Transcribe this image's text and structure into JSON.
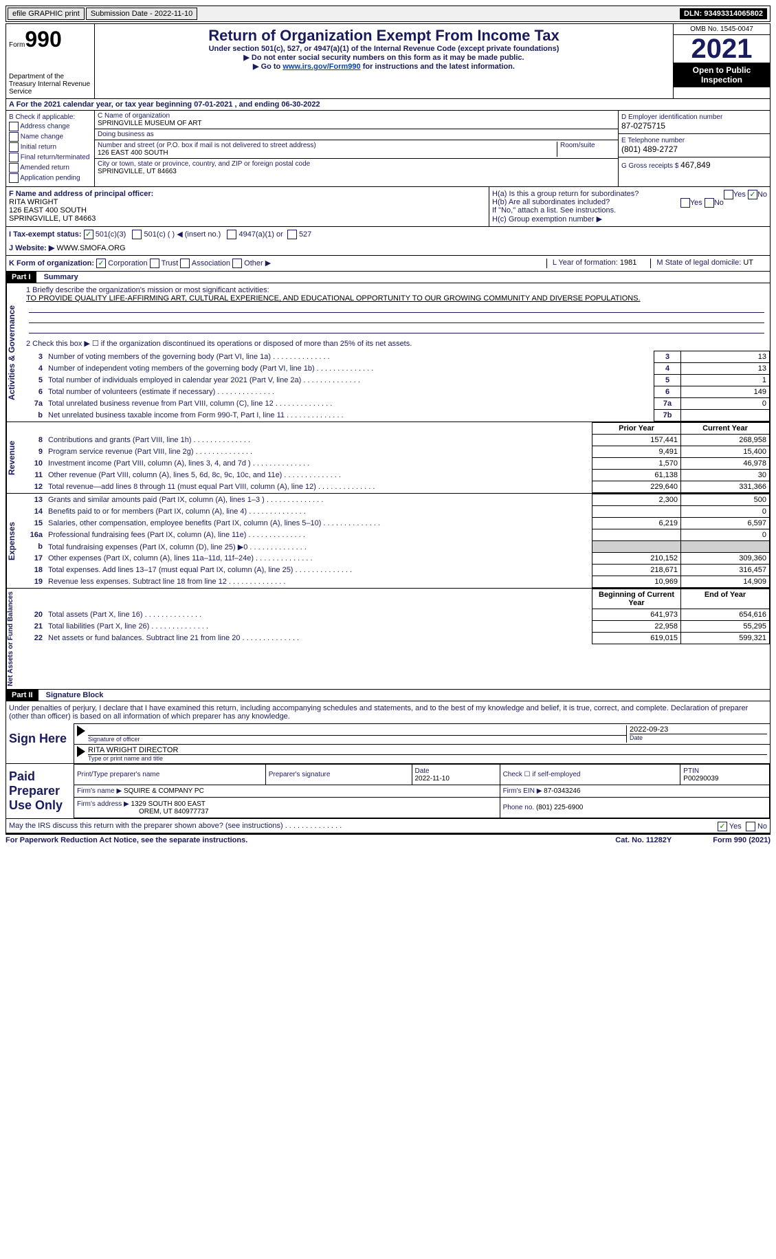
{
  "topbar": {
    "efile": "efile GRAPHIC print",
    "submission": "Submission Date - 2022-11-10",
    "dln": "DLN: 93493314065802"
  },
  "header": {
    "form_word": "Form",
    "form_num": "990",
    "dept": "Department of the Treasury Internal Revenue Service",
    "title": "Return of Organization Exempt From Income Tax",
    "sub1": "Under section 501(c), 527, or 4947(a)(1) of the Internal Revenue Code (except private foundations)",
    "sub2": "▶ Do not enter social security numbers on this form as it may be made public.",
    "sub3_pre": "▶ Go to ",
    "sub3_link": "www.irs.gov/Form990",
    "sub3_post": " for instructions and the latest information.",
    "omb": "OMB No. 1545-0047",
    "year": "2021",
    "inspection": "Open to Public Inspection"
  },
  "a": {
    "text": "A For the 2021 calendar year, or tax year beginning 07-01-2021   , and ending 06-30-2022"
  },
  "b": {
    "label": "B Check if applicable:",
    "items": [
      "Address change",
      "Name change",
      "Initial return",
      "Final return/terminated",
      "Amended return",
      "Application pending"
    ]
  },
  "c": {
    "name_lbl": "C Name of organization",
    "name": "SPRINGVILLE MUSEUM OF ART",
    "dba_lbl": "Doing business as",
    "dba": "",
    "addr_lbl": "Number and street (or P.O. box if mail is not delivered to street address)",
    "room_lbl": "Room/suite",
    "addr": "126 EAST 400 SOUTH",
    "city_lbl": "City or town, state or province, country, and ZIP or foreign postal code",
    "city": "SPRINGVILLE, UT  84663"
  },
  "d": {
    "ein_lbl": "D Employer identification number",
    "ein": "87-0275715",
    "tel_lbl": "E Telephone number",
    "tel": "(801) 489-2727",
    "gross_lbl": "G Gross receipts $",
    "gross": "467,849"
  },
  "f": {
    "lbl": "F Name and address of principal officer:",
    "name": "RITA WRIGHT",
    "addr1": "126 EAST 400 SOUTH",
    "addr2": "SPRINGVILLE, UT  84663"
  },
  "h": {
    "a_lbl": "H(a)  Is this a group return for subordinates?",
    "a_yes": "Yes",
    "a_no": "No",
    "b_lbl": "H(b)  Are all subordinates included?",
    "b_yes": "Yes",
    "b_no": "No",
    "b_note": "If \"No,\" attach a list. See instructions.",
    "c_lbl": "H(c)  Group exemption number ▶"
  },
  "i": {
    "lbl": "I  Tax-exempt status:",
    "opt1": "501(c)(3)",
    "opt2": "501(c) (  ) ◀ (insert no.)",
    "opt3": "4947(a)(1) or",
    "opt4": "527"
  },
  "j": {
    "lbl": "J  Website: ▶",
    "val": "WWW.SMOFA.ORG"
  },
  "k": {
    "lbl": "K Form of organization:",
    "opts": [
      "Corporation",
      "Trust",
      "Association",
      "Other ▶"
    ],
    "l_lbl": "L Year of formation:",
    "l_val": "1981",
    "m_lbl": "M State of legal domicile:",
    "m_val": "UT"
  },
  "part1": {
    "header": "Part I",
    "title": "Summary",
    "mission_lbl": "1  Briefly describe the organization's mission or most significant activities:",
    "mission": "TO PROVIDE QUALITY LIFE-AFFIRMING ART, CULTURAL EXPERIENCE, AND EDUCATIONAL OPPORTUNITY TO OUR GROWING COMMUNITY AND DIVERSE POPULATIONS.",
    "line2": "2   Check this box ▶ ☐  if the organization discontinued its operations or disposed of more than 25% of its net assets.",
    "side_ag": "Activities & Governance",
    "side_rev": "Revenue",
    "side_exp": "Expenses",
    "side_net": "Net Assets or Fund Balances",
    "rows_governance": [
      {
        "n": "3",
        "d": "Number of voting members of the governing body (Part VI, line 1a)",
        "b": "3",
        "v": "13"
      },
      {
        "n": "4",
        "d": "Number of independent voting members of the governing body (Part VI, line 1b)",
        "b": "4",
        "v": "13"
      },
      {
        "n": "5",
        "d": "Total number of individuals employed in calendar year 2021 (Part V, line 2a)",
        "b": "5",
        "v": "1"
      },
      {
        "n": "6",
        "d": "Total number of volunteers (estimate if necessary)",
        "b": "6",
        "v": "149"
      },
      {
        "n": "7a",
        "d": "Total unrelated business revenue from Part VIII, column (C), line 12",
        "b": "7a",
        "v": "0"
      },
      {
        "n": "b",
        "d": "Net unrelated business taxable income from Form 990-T, Part I, line 11",
        "b": "7b",
        "v": ""
      }
    ],
    "col_prior": "Prior Year",
    "col_current": "Current Year",
    "rows_revenue": [
      {
        "n": "8",
        "d": "Contributions and grants (Part VIII, line 1h)",
        "p": "157,441",
        "c": "268,958"
      },
      {
        "n": "9",
        "d": "Program service revenue (Part VIII, line 2g)",
        "p": "9,491",
        "c": "15,400"
      },
      {
        "n": "10",
        "d": "Investment income (Part VIII, column (A), lines 3, 4, and 7d )",
        "p": "1,570",
        "c": "46,978"
      },
      {
        "n": "11",
        "d": "Other revenue (Part VIII, column (A), lines 5, 6d, 8c, 9c, 10c, and 11e)",
        "p": "61,138",
        "c": "30"
      },
      {
        "n": "12",
        "d": "Total revenue—add lines 8 through 11 (must equal Part VIII, column (A), line 12)",
        "p": "229,640",
        "c": "331,366"
      }
    ],
    "rows_expenses": [
      {
        "n": "13",
        "d": "Grants and similar amounts paid (Part IX, column (A), lines 1–3 )",
        "p": "2,300",
        "c": "500"
      },
      {
        "n": "14",
        "d": "Benefits paid to or for members (Part IX, column (A), line 4)",
        "p": "",
        "c": "0"
      },
      {
        "n": "15",
        "d": "Salaries, other compensation, employee benefits (Part IX, column (A), lines 5–10)",
        "p": "6,219",
        "c": "6,597"
      },
      {
        "n": "16a",
        "d": "Professional fundraising fees (Part IX, column (A), line 11e)",
        "p": "",
        "c": "0"
      },
      {
        "n": "b",
        "d": "Total fundraising expenses (Part IX, column (D), line 25) ▶0",
        "p": "shade",
        "c": "shade"
      },
      {
        "n": "17",
        "d": "Other expenses (Part IX, column (A), lines 11a–11d, 11f–24e)",
        "p": "210,152",
        "c": "309,360"
      },
      {
        "n": "18",
        "d": "Total expenses. Add lines 13–17 (must equal Part IX, column (A), line 25)",
        "p": "218,671",
        "c": "316,457"
      },
      {
        "n": "19",
        "d": "Revenue less expenses. Subtract line 18 from line 12",
        "p": "10,969",
        "c": "14,909"
      }
    ],
    "col_begin": "Beginning of Current Year",
    "col_end": "End of Year",
    "rows_net": [
      {
        "n": "20",
        "d": "Total assets (Part X, line 16)",
        "p": "641,973",
        "c": "654,616"
      },
      {
        "n": "21",
        "d": "Total liabilities (Part X, line 26)",
        "p": "22,958",
        "c": "55,295"
      },
      {
        "n": "22",
        "d": "Net assets or fund balances. Subtract line 21 from line 20",
        "p": "619,015",
        "c": "599,321"
      }
    ]
  },
  "part2": {
    "header": "Part II",
    "title": "Signature Block",
    "text": "Under penalties of perjury, I declare that I have examined this return, including accompanying schedules and statements, and to the best of my knowledge and belief, it is true, correct, and complete. Declaration of preparer (other than officer) is based on all information of which preparer has any knowledge.",
    "sign_here": "Sign Here",
    "sig_officer": "Signature of officer",
    "sig_date": "2022-09-23",
    "sig_date_lbl": "Date",
    "name_title": "RITA WRIGHT  DIRECTOR",
    "name_title_lbl": "Type or print name and title",
    "paid": "Paid Preparer Use Only",
    "prep_name_lbl": "Print/Type preparer's name",
    "prep_sig_lbl": "Preparer's signature",
    "prep_date_lbl": "Date",
    "prep_date": "2022-11-10",
    "check_lbl": "Check ☐ if self-employed",
    "ptin_lbl": "PTIN",
    "ptin": "P00290039",
    "firm_name_lbl": "Firm's name    ▶",
    "firm_name": "SQUIRE & COMPANY PC",
    "firm_ein_lbl": "Firm's EIN ▶",
    "firm_ein": "87-0343246",
    "firm_addr_lbl": "Firm's address ▶",
    "firm_addr": "1329 SOUTH 800 EAST",
    "firm_city": "OREM, UT  840977737",
    "phone_lbl": "Phone no.",
    "phone": "(801) 225-6900",
    "discuss": "May the IRS discuss this return with the preparer shown above? (see instructions)",
    "yes": "Yes",
    "no": "No"
  },
  "footer": {
    "left": "For Paperwork Reduction Act Notice, see the separate instructions.",
    "mid": "Cat. No. 11282Y",
    "right": "Form 990 (2021)"
  }
}
